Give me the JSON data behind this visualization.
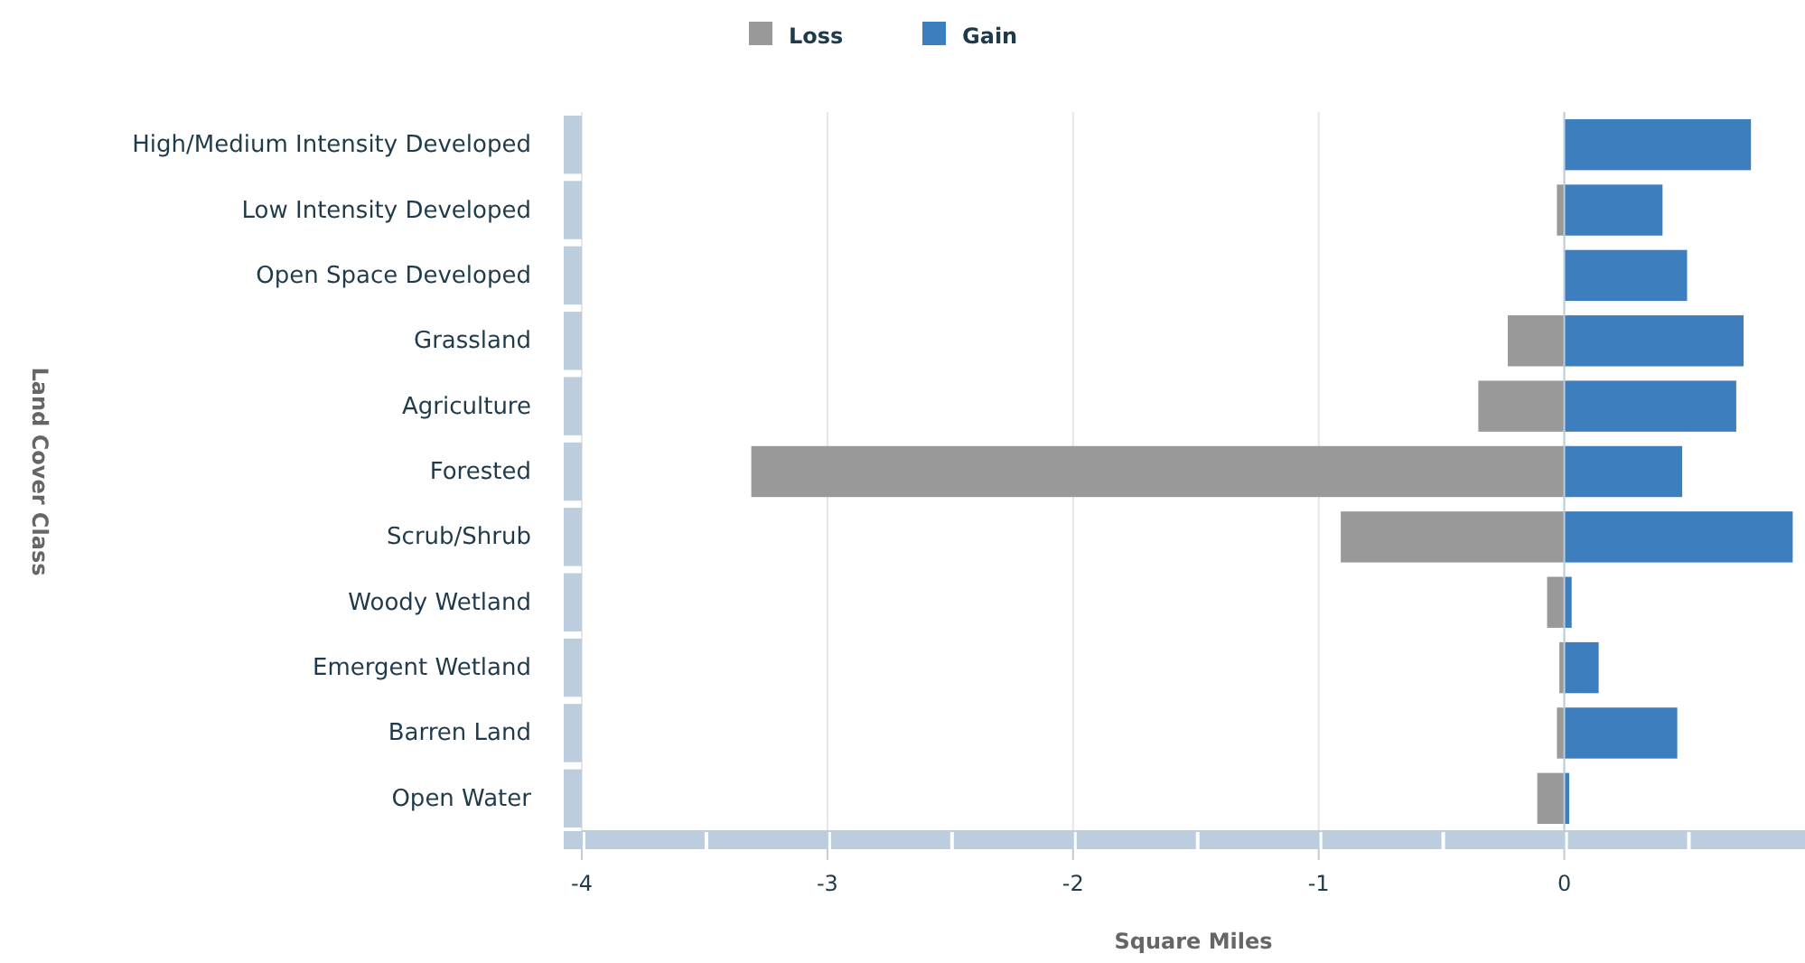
{
  "chart_data": {
    "type": "bar",
    "orientation": "horizontal",
    "stacked": true,
    "xlabel": "Square Miles",
    "ylabel": "Land Cover Class",
    "categories": [
      "High/Medium Intensity Developed",
      "Low Intensity Developed",
      "Open Space Developed",
      "Grassland",
      "Agriculture",
      "Forested",
      "Scrub/Shrub",
      "Woody Wetland",
      "Emergent Wetland",
      "Barren Land",
      "Open Water"
    ],
    "series": [
      {
        "name": "Loss",
        "color": "#999999",
        "values": [
          0,
          -0.03,
          0,
          -0.23,
          -0.35,
          -3.31,
          -0.91,
          -0.07,
          -0.02,
          -0.03,
          -0.11
        ]
      },
      {
        "name": "Gain",
        "color": "#3d7ebf",
        "values": [
          0.76,
          0.4,
          0.5,
          0.73,
          0.7,
          0.48,
          0.93,
          0.03,
          0.14,
          0.46,
          0.02
        ]
      }
    ],
    "xlim": [
      -4,
      0.98
    ],
    "xticks": [
      -4,
      -3,
      -2,
      -1,
      0
    ],
    "grid": "x",
    "legend": "top"
  }
}
